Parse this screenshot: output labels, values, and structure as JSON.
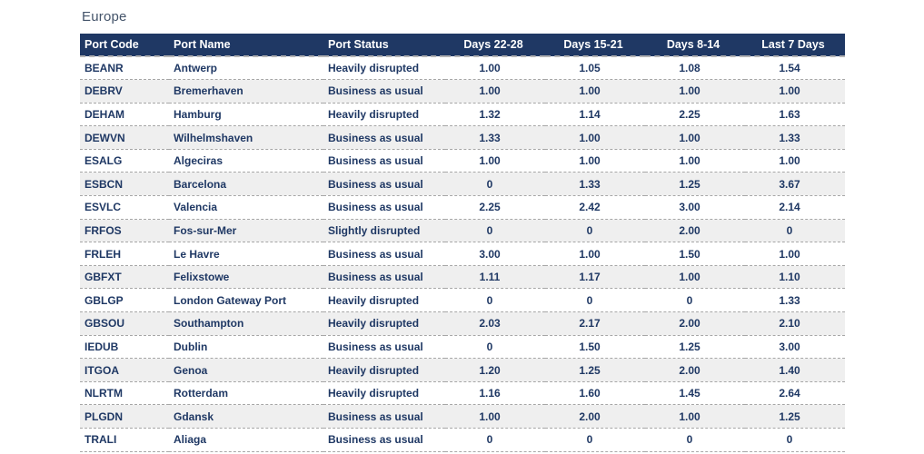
{
  "title": "Europe",
  "colors": {
    "header_bg": "#1f3864",
    "header_text": "#ffffff",
    "body_text": "#1f3864",
    "title_text": "#44546a",
    "stripe_bg": "#efefef",
    "row_border": "#a6a6a6"
  },
  "chart_data": {
    "type": "table",
    "title": "Europe",
    "columns": [
      "Port Code",
      "Port Name",
      "Port Status",
      "Days 22-28",
      "Days 15-21",
      "Days 8-14",
      "Last 7 Days"
    ],
    "rows": [
      [
        "BEANR",
        "Antwerp",
        "Heavily disrupted",
        "1.00",
        "1.05",
        "1.08",
        "1.54"
      ],
      [
        "DEBRV",
        "Bremerhaven",
        "Business as usual",
        "1.00",
        "1.00",
        "1.00",
        "1.00"
      ],
      [
        "DEHAM",
        "Hamburg",
        "Heavily disrupted",
        "1.32",
        "1.14",
        "2.25",
        "1.63"
      ],
      [
        "DEWVN",
        "Wilhelmshaven",
        "Business as usual",
        "1.33",
        "1.00",
        "1.00",
        "1.33"
      ],
      [
        "ESALG",
        "Algeciras",
        "Business as usual",
        "1.00",
        "1.00",
        "1.00",
        "1.00"
      ],
      [
        "ESBCN",
        "Barcelona",
        "Business as usual",
        "0",
        "1.33",
        "1.25",
        "3.67"
      ],
      [
        "ESVLC",
        "Valencia",
        "Business as usual",
        "2.25",
        "2.42",
        "3.00",
        "2.14"
      ],
      [
        "FRFOS",
        "Fos-sur-Mer",
        "Slightly disrupted",
        "0",
        "0",
        "2.00",
        "0"
      ],
      [
        "FRLEH",
        "Le Havre",
        "Business as usual",
        "3.00",
        "1.00",
        "1.50",
        "1.00"
      ],
      [
        "GBFXT",
        "Felixstowe",
        "Business as usual",
        "1.11",
        "1.17",
        "1.00",
        "1.10"
      ],
      [
        "GBLGP",
        "London Gateway Port",
        "Heavily disrupted",
        "0",
        "0",
        "0",
        "1.33"
      ],
      [
        "GBSOU",
        "Southampton",
        "Heavily disrupted",
        "2.03",
        "2.17",
        "2.00",
        "2.10"
      ],
      [
        "IEDUB",
        "Dublin",
        "Business as usual",
        "0",
        "1.50",
        "1.25",
        "3.00"
      ],
      [
        "ITGOA",
        "Genoa",
        "Heavily disrupted",
        "1.20",
        "1.25",
        "2.00",
        "1.40"
      ],
      [
        "NLRTM",
        "Rotterdam",
        "Heavily disrupted",
        "1.16",
        "1.60",
        "1.45",
        "2.64"
      ],
      [
        "PLGDN",
        "Gdansk",
        "Business as usual",
        "1.00",
        "2.00",
        "1.00",
        "1.25"
      ],
      [
        "TRALI",
        "Aliaga",
        "Business as usual",
        "0",
        "0",
        "0",
        "0"
      ]
    ]
  }
}
